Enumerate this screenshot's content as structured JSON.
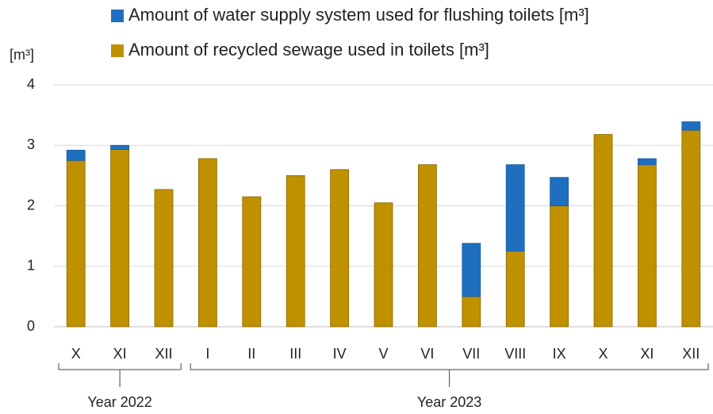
{
  "chart_data": {
    "type": "stacked-bar",
    "y_label": "[m³]",
    "categories": [
      "X",
      "XI",
      "XII",
      "I",
      "II",
      "III",
      "IV",
      "V",
      "VI",
      "VII",
      "VIII",
      "IX",
      "X",
      "XI",
      "XII"
    ],
    "groups": [
      "Year 2022",
      "Year 2023"
    ],
    "series": [
      {
        "name": "Amount of water supply system used for flushing toilets [m³]",
        "color": "#1f6fc0",
        "values": [
          0.17,
          0.07,
          0,
          0,
          0,
          0,
          0,
          0,
          0,
          0.88,
          1.43,
          0.47,
          0,
          0.1,
          0.14
        ]
      },
      {
        "name": "Amount of recycled sewage used in toilets [m³]",
        "color": "#bf9000",
        "values": [
          2.75,
          2.93,
          2.27,
          2.78,
          2.15,
          2.5,
          2.6,
          2.05,
          2.68,
          0.5,
          1.25,
          2.0,
          3.18,
          2.68,
          3.25
        ]
      }
    ],
    "ylim": [
      0,
      4
    ],
    "yticks": [
      0,
      1,
      2,
      3,
      4
    ],
    "grid": true
  }
}
